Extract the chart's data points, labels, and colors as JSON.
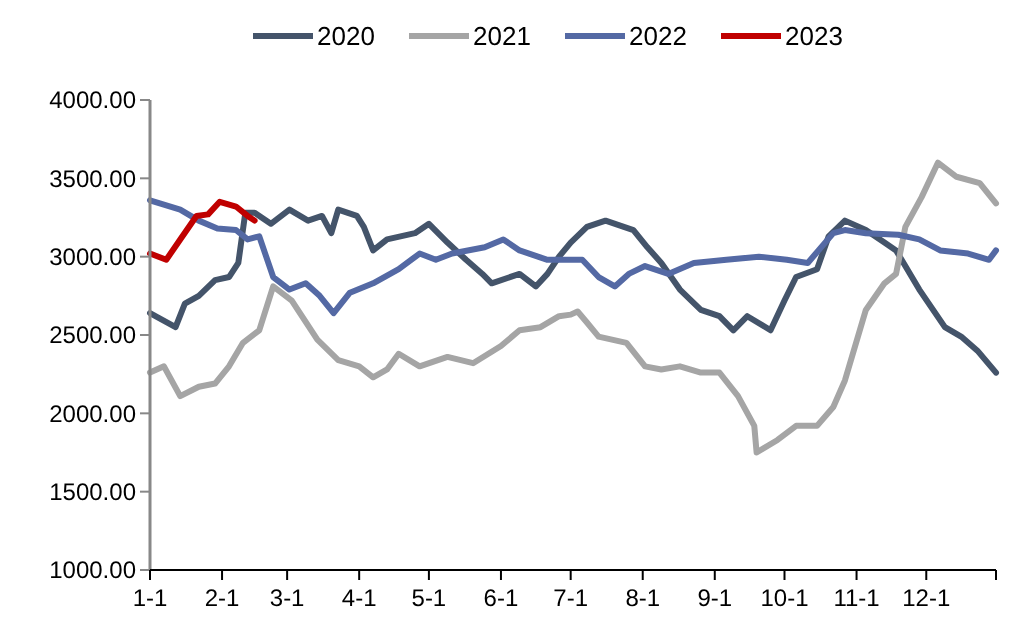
{
  "chart_data": {
    "type": "line",
    "legend": "top",
    "marker": "none",
    "line_style": "solid",
    "xlim": [
      "--01-01",
      "--12-31"
    ],
    "xticks": [
      {
        "value": "--01-01",
        "label": "1-1"
      },
      {
        "value": "--02-01",
        "label": "2-1"
      },
      {
        "value": "--03-01",
        "label": "3-1"
      },
      {
        "value": "--04-01",
        "label": "4-1"
      },
      {
        "value": "--05-01",
        "label": "5-1"
      },
      {
        "value": "--06-01",
        "label": "6-1"
      },
      {
        "value": "--07-01",
        "label": "7-1"
      },
      {
        "value": "--08-01",
        "label": "8-1"
      },
      {
        "value": "--09-01",
        "label": "9-1"
      },
      {
        "value": "--10-01",
        "label": "10-1"
      },
      {
        "value": "--11-01",
        "label": "11-1"
      },
      {
        "value": "--12-01",
        "label": "12-1"
      },
      {
        "value": "--12-31",
        "label": null
      }
    ],
    "ylim": [
      1000,
      4000
    ],
    "yticks": [
      {
        "value": 1000,
        "label": "1000.00"
      },
      {
        "value": 1500,
        "label": "1500.00"
      },
      {
        "value": 2000,
        "label": "2000.00"
      },
      {
        "value": 2500,
        "label": "2500.00"
      },
      {
        "value": 3000,
        "label": "3000.00"
      },
      {
        "value": 3500,
        "label": "3500.00"
      },
      {
        "value": 4000,
        "label": "4000.00"
      }
    ],
    "series": [
      {
        "name": "2020",
        "color": "#44546a",
        "x": [
          "--01-01",
          "--01-12",
          "--01-16",
          "--01-22",
          "--01-29",
          "--02-04",
          "--02-08",
          "--02-11",
          "--02-15",
          "--02-22",
          "--03-02",
          "--03-10",
          "--03-16",
          "--03-20",
          "--03-23",
          "--03-31",
          "--04-03",
          "--04-07",
          "--04-13",
          "--04-25",
          "--05-01",
          "--05-09",
          "--05-17",
          "--05-24",
          "--05-28",
          "--06-09",
          "--06-16",
          "--06-21",
          "--06-26",
          "--07-01",
          "--07-08",
          "--07-16",
          "--07-28",
          "--08-03",
          "--08-09",
          "--08-17",
          "--08-26",
          "--09-03",
          "--09-09",
          "--09-15",
          "--09-25",
          "--10-01",
          "--10-06",
          "--10-15",
          "--10-20",
          "--10-27",
          "--11-05",
          "--11-13",
          "--11-18",
          "--11-28",
          "--12-09",
          "--12-16",
          "--12-23",
          "--12-31"
        ],
        "values": [
          2640,
          2550,
          2700,
          2750,
          2850,
          2870,
          2960,
          3280,
          3280,
          3210,
          3300,
          3230,
          3260,
          3150,
          3300,
          3260,
          3190,
          3040,
          3110,
          3150,
          3210,
          3090,
          2980,
          2890,
          2830,
          2890,
          2810,
          2890,
          3000,
          3090,
          3190,
          3230,
          3170,
          3060,
          2960,
          2790,
          2660,
          2620,
          2530,
          2620,
          2530,
          2720,
          2870,
          2920,
          3130,
          3230,
          3170,
          3090,
          3040,
          2790,
          2550,
          2490,
          2400,
          2260
        ]
      },
      {
        "name": "2021",
        "color": "#a5a5a5",
        "x": [
          "--01-01",
          "--01-07",
          "--01-14",
          "--01-22",
          "--01-29",
          "--02-04",
          "--02-10",
          "--02-17",
          "--02-23",
          "--03-03",
          "--03-14",
          "--03-23",
          "--04-01",
          "--04-07",
          "--04-13",
          "--04-18",
          "--04-27",
          "--05-09",
          "--05-20",
          "--06-01",
          "--06-09",
          "--06-18",
          "--06-26",
          "--07-01",
          "--07-04",
          "--07-08",
          "--07-13",
          "--07-25",
          "--08-02",
          "--08-09",
          "--08-17",
          "--08-26",
          "--09-03",
          "--09-11",
          "--09-18",
          "--09-19",
          "--09-28",
          "--10-06",
          "--10-15",
          "--10-22",
          "--10-27",
          "--11-05",
          "--11-13",
          "--11-18",
          "--11-22",
          "--11-29",
          "--12-06",
          "--12-14",
          "--12-24",
          "--12-31"
        ],
        "values": [
          2260,
          2300,
          2110,
          2170,
          2190,
          2300,
          2450,
          2530,
          2810,
          2720,
          2470,
          2340,
          2300,
          2230,
          2280,
          2380,
          2300,
          2360,
          2320,
          2430,
          2530,
          2550,
          2620,
          2630,
          2650,
          2580,
          2490,
          2450,
          2300,
          2280,
          2300,
          2260,
          2260,
          2110,
          1920,
          1750,
          1830,
          1920,
          1920,
          2040,
          2210,
          2660,
          2830,
          2890,
          3190,
          3380,
          3600,
          3510,
          3470,
          3340
        ]
      },
      {
        "name": "2022",
        "color": "#5469a4",
        "x": [
          "--01-01",
          "--01-14",
          "--01-22",
          "--01-30",
          "--02-07",
          "--02-12",
          "--02-17",
          "--02-23",
          "--03-02",
          "--03-09",
          "--03-15",
          "--03-21",
          "--03-28",
          "--04-07",
          "--04-18",
          "--04-27",
          "--05-04",
          "--05-11",
          "--05-25",
          "--06-02",
          "--06-09",
          "--06-21",
          "--07-01",
          "--07-06",
          "--07-13",
          "--07-20",
          "--07-26",
          "--08-02",
          "--08-12",
          "--08-23",
          "--09-06",
          "--09-20",
          "--10-02",
          "--10-11",
          "--10-22",
          "--10-27",
          "--11-05",
          "--11-19",
          "--11-28",
          "--12-07",
          "--12-19",
          "--12-28",
          "--12-31"
        ],
        "values": [
          3360,
          3300,
          3230,
          3180,
          3170,
          3110,
          3130,
          2870,
          2790,
          2830,
          2750,
          2640,
          2770,
          2830,
          2920,
          3020,
          2980,
          3020,
          3060,
          3110,
          3040,
          2980,
          2980,
          2980,
          2870,
          2810,
          2890,
          2940,
          2890,
          2960,
          2980,
          3000,
          2980,
          2960,
          3150,
          3170,
          3150,
          3140,
          3110,
          3040,
          3020,
          2980,
          3040
        ]
      },
      {
        "name": "2023",
        "color": "#c00000",
        "x": [
          "--01-01",
          "--01-08",
          "--01-14",
          "--01-21",
          "--01-26",
          "--01-31",
          "--02-07",
          "--02-12",
          "--02-15"
        ],
        "values": [
          3020,
          2980,
          3110,
          3260,
          3270,
          3350,
          3320,
          3260,
          3230
        ]
      }
    ]
  }
}
